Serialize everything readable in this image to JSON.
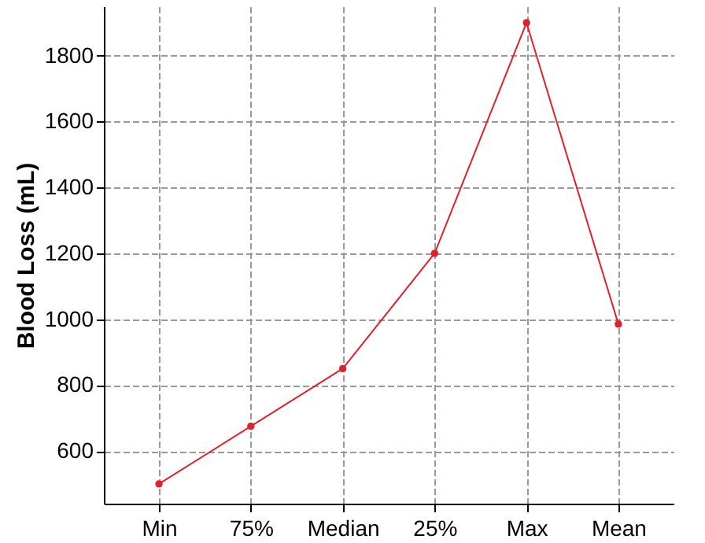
{
  "chart_data": {
    "type": "line",
    "ylabel": "Blood Loss (mL)",
    "categories": [
      "Min",
      "75%",
      "Median",
      "25%",
      "Max",
      "Mean"
    ],
    "series": [
      {
        "color": "#e0202a",
        "values": [
          500,
          675,
          850,
          1200,
          1900,
          985
        ]
      }
    ],
    "ylim": [
      440,
      1950
    ],
    "yticks": [
      600,
      800,
      1000,
      1200,
      1400,
      1600,
      1800
    ],
    "grid": true,
    "marker": "circle",
    "line_style": "solid"
  }
}
